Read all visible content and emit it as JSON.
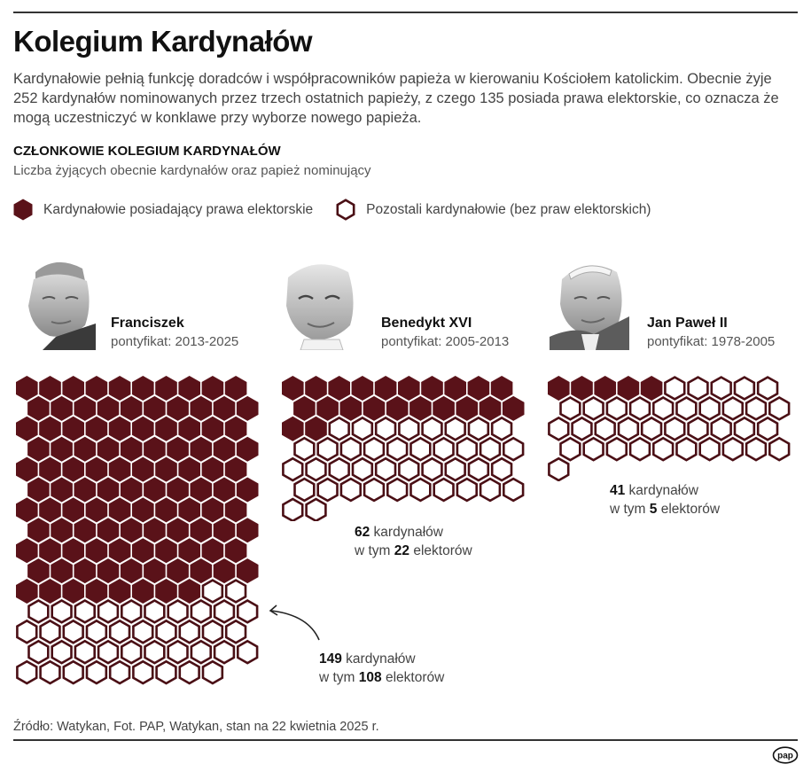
{
  "header": {
    "title": "Kolegium Kardynałów",
    "intro": "Kardynałowie pełnią funkcję doradców i współpracowników papieża w kierowaniu Kościołem katolickim. Obecnie żyje 252 kardynałów nominowanych przez trzech ostatnich papieży, z czego 135 posiada prawa elektorskie, co oznacza że mogą uczestniczyć w konklawe przy wyborze nowego papieża."
  },
  "section": {
    "heading": "CZŁONKOWIE KOLEGIUM KARDYNAŁÓW",
    "subtitle": "Liczba żyjących obecnie kardynałów oraz papież nominujący"
  },
  "legend": {
    "electors": "Kardynałowie posiadający prawa elektorskie",
    "non_electors": "Pozostali kardynałowie (bez praw elektorskich)"
  },
  "colors": {
    "elector": "#5a1219",
    "non_elector_stroke": "#4a0f15",
    "background": "#ffffff"
  },
  "popes": [
    {
      "name": "Franciszek",
      "pontificate": "pontyfikat: 2013-2025",
      "total": "149",
      "electors": "108",
      "caption_total_suffix": " kardynałów",
      "caption_prefix": "w tym ",
      "caption_electors_suffix": " elektorów"
    },
    {
      "name": "Benedykt XVI",
      "pontificate": "pontyfikat: 2005-2013",
      "total": "62",
      "electors": "22",
      "caption_total_suffix": " kardynałów",
      "caption_prefix": "w tym ",
      "caption_electors_suffix": " elektorów"
    },
    {
      "name": "Jan Paweł II",
      "pontificate": "pontyfikat: 1978-2005",
      "total": "41",
      "electors": "5",
      "caption_total_suffix": " kardynałów",
      "caption_prefix": "w tym ",
      "caption_electors_suffix": " elektorów"
    }
  ],
  "footer": {
    "source": "Źródło: Watykan, Fot. PAP, Watykan, stan na 22 kwietnia 2025 r.",
    "logo": "pap"
  },
  "chart_data": {
    "type": "waffle",
    "title": "CZŁONKOWIE KOLEGIUM KARDYNAŁÓW",
    "subtitle": "Liczba żyjących obecnie kardynałów oraz papież nominujący",
    "categories": [
      "Franciszek",
      "Benedykt XVI",
      "Jan Paweł II"
    ],
    "series": [
      {
        "name": "Kardynałowie posiadający prawa elektorskie",
        "values": [
          108,
          22,
          5
        ]
      },
      {
        "name": "Pozostali kardynałowie (bez praw elektorskich)",
        "values": [
          41,
          40,
          36
        ]
      }
    ],
    "totals": [
      149,
      62,
      41
    ],
    "overall_total": 252,
    "overall_electors": 135,
    "units_per_row": 10,
    "legend_position": "top"
  }
}
